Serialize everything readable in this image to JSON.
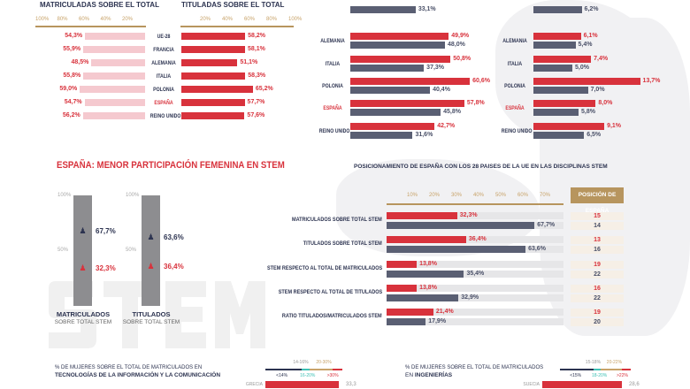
{
  "chart_data": [
    {
      "type": "bar",
      "orientation": "horizontal",
      "title": "MATRICULADAS SOBRE EL TOTAL",
      "direction": "right-to-left",
      "ticks": [
        "100%",
        "80%",
        "60%",
        "40%",
        "20%"
      ],
      "xlim": [
        0,
        100
      ],
      "categories": [
        "UE-28",
        "FRANCIA",
        "ALEMANIA",
        "ITALIA",
        "POLONIA",
        "ESPAÑA",
        "REINO UNIDO"
      ],
      "values": [
        54.3,
        55.9,
        48.5,
        55.8,
        59.0,
        54.7,
        56.2
      ],
      "labels": [
        "54,3%",
        "55,9%",
        "48,5%",
        "55,8%",
        "59,0%",
        "54,7%",
        "56,2%"
      ],
      "color": "#f5c9cf"
    },
    {
      "type": "bar",
      "orientation": "horizontal",
      "title": "TITULADAS SOBRE EL TOTAL",
      "ticks": [
        "20%",
        "40%",
        "60%",
        "80%",
        "100%"
      ],
      "xlim": [
        0,
        100
      ],
      "categories": [
        "UE-28",
        "FRANCIA",
        "ALEMANIA",
        "ITALIA",
        "POLONIA",
        "ESPAÑA",
        "REINO UNIDO"
      ],
      "values": [
        58.2,
        58.1,
        51.1,
        58.3,
        65.2,
        57.7,
        57.6
      ],
      "labels": [
        "58,2%",
        "58,1%",
        "51,1%",
        "58,3%",
        "65,2%",
        "57,7%",
        "57,6%"
      ],
      "color": "#d8323c"
    },
    {
      "type": "bar",
      "orientation": "horizontal",
      "xlim": [
        0,
        100
      ],
      "categories": [
        "FRANCIA",
        "ALEMANIA",
        "ITALIA",
        "POLONIA",
        "ESPAÑA",
        "REINO UNIDO"
      ],
      "series": [
        {
          "values": [
            null,
            49.9,
            50.8,
            60.6,
            57.8,
            42.7
          ],
          "labels": [
            "",
            "49,9%",
            "50,8%",
            "60,6%",
            "57,8%",
            "42,7%"
          ],
          "color": "#d8323c"
        },
        {
          "values": [
            33.1,
            48.0,
            37.3,
            40.4,
            45.8,
            31.6
          ],
          "labels": [
            "33,1%",
            "48,0%",
            "37,3%",
            "40,4%",
            "45,8%",
            "31,6%"
          ],
          "color": "#5a5f73"
        }
      ]
    },
    {
      "type": "bar",
      "orientation": "horizontal",
      "xlim": [
        0,
        20
      ],
      "categories": [
        "FRANCIA",
        "ALEMANIA",
        "ITALIA",
        "POLONIA",
        "ESPAÑA",
        "REINO UNIDO"
      ],
      "series": [
        {
          "values": [
            null,
            6.1,
            7.4,
            13.7,
            8.0,
            9.1
          ],
          "labels": [
            "",
            "6,1%",
            "7,4%",
            "13,7%",
            "8,0%",
            "9,1%"
          ],
          "color": "#d8323c"
        },
        {
          "values": [
            6.2,
            5.4,
            5.0,
            7.0,
            5.8,
            6.5
          ],
          "labels": [
            "6,2%",
            "5,4%",
            "5,0%",
            "7,0%",
            "5,8%",
            "6,5%"
          ],
          "color": "#5a5f73"
        }
      ]
    },
    {
      "type": "bar",
      "orientation": "vertical",
      "title": "ESPAÑA: MENOR PARTICIPACIÓN FEMENINA EN STEM",
      "ticks": [
        "100%",
        "50%"
      ],
      "categories": [
        {
          "main": "MATRICULADOS",
          "sub": "SOBRE TOTAL STEM"
        },
        {
          "main": "TITULADOS",
          "sub": "SOBRE TOTAL STEM"
        }
      ],
      "men": [
        "67,7%",
        "63,6%"
      ],
      "women": [
        "32,3%",
        "36,4%"
      ],
      "watermark": "STEM"
    },
    {
      "type": "bar",
      "orientation": "horizontal",
      "title": "POSICIONAMIENTO DE ESPAÑA CON LOS 28 PAISES DE LA UE EN LAS DISCIPLINAS STEM",
      "ticks": [
        "10%",
        "20%",
        "30%",
        "40%",
        "50%",
        "60%",
        "70%"
      ],
      "xlim": [
        0,
        80
      ],
      "position_header": "POSICIÓN DE ESPAÑA",
      "categories": [
        "MATRICULADOS SOBRE TOTAL STEM",
        "TITULADOS SOBRE TOTAL STEM",
        "STEM RESPECTO AL TOTAL DE MATRICULADOS",
        "STEM RESPECTO AL TOTAL DE TITULADOS",
        "RATIO TITULADOS/MATRICULADOS STEM"
      ],
      "series": [
        {
          "values": [
            32.3,
            36.4,
            13.8,
            13.8,
            21.4
          ],
          "labels": [
            "32,3%",
            "36,4%",
            "13,8%",
            "13,8%",
            "21,4%"
          ],
          "positions": [
            "15",
            "13",
            "19",
            "16",
            "19"
          ],
          "color": "#d8323c"
        },
        {
          "values": [
            67.7,
            63.6,
            35.4,
            32.9,
            17.9
          ],
          "labels": [
            "67,7%",
            "63,6%",
            "35,4%",
            "32,9%",
            "17,9%"
          ],
          "positions": [
            "14",
            "16",
            "22",
            "22",
            "20"
          ],
          "color": "#5a5f73"
        }
      ]
    }
  ],
  "bottom": [
    {
      "line1": "% DE MUJERES SOBRE EL TOTAL DE MATRICULADOS EN",
      "line2": "TECNOLOGÍAS DE LA INFORMACIÓN Y LA COMUNICACIÓN",
      "legend_top": [
        "14-16%",
        "20-30%"
      ],
      "legend_bottom": [
        "<14%",
        "16-20%",
        ">30%"
      ],
      "country": "GRECIA",
      "value": "33,3"
    },
    {
      "line1": "% DE MUJERES SOBRE EL TOTAL DE MATRICULADOS",
      "line2_prefix": "EN ",
      "line2": "INGENIERÍAS",
      "legend_top": [
        "15-18%",
        "20-22%"
      ],
      "legend_bottom": [
        "<15%",
        "18-20%",
        ">22%"
      ],
      "country": "SUECIA",
      "value": "28,6"
    }
  ],
  "colors": {
    "red": "#d8323c",
    "navy": "#2c3350",
    "grey": "#5a5f73",
    "teal": "#3fc1b5",
    "gold": "#b7955e",
    "pink": "#f5c9cf"
  }
}
